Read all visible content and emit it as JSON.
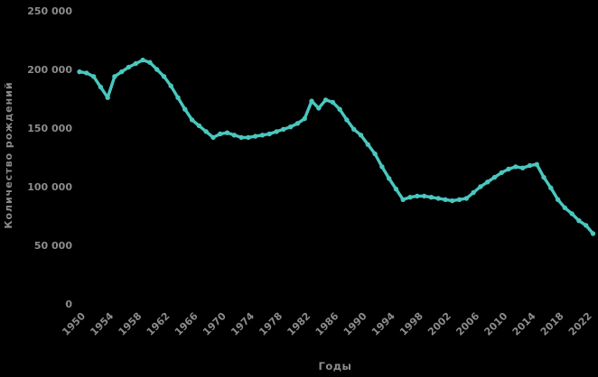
{
  "colors": {
    "background": "#000000",
    "text": "#8c8c8c",
    "accent": "#4ac7be"
  },
  "chart_data": {
    "type": "line",
    "title": "",
    "xlabel": "Годы",
    "ylabel": "Количество рождений",
    "grid": false,
    "legend": "none",
    "xlim": [
      1950,
      2023
    ],
    "ylim": [
      0,
      250000
    ],
    "x_tick_years": [
      1950,
      1954,
      1958,
      1962,
      1966,
      1970,
      1974,
      1978,
      1982,
      1986,
      1990,
      1994,
      1998,
      2002,
      2006,
      2010,
      2014,
      2018,
      2022
    ],
    "y_ticks": [
      {
        "value": 0,
        "label": "0"
      },
      {
        "value": 50000,
        "label": "50 000"
      },
      {
        "value": 100000,
        "label": "100 000"
      },
      {
        "value": 150000,
        "label": "150 000"
      },
      {
        "value": 200000,
        "label": "200 000"
      },
      {
        "value": 250000,
        "label": "250 000"
      }
    ],
    "series": [
      {
        "name": "Количество рождений",
        "color": "#4ac7be",
        "marker": "circle",
        "x": [
          1950,
          1951,
          1952,
          1953,
          1954,
          1955,
          1956,
          1957,
          1958,
          1959,
          1960,
          1961,
          1962,
          1963,
          1964,
          1965,
          1966,
          1967,
          1968,
          1969,
          1970,
          1971,
          1972,
          1973,
          1974,
          1975,
          1976,
          1977,
          1978,
          1979,
          1980,
          1981,
          1982,
          1983,
          1984,
          1985,
          1986,
          1987,
          1988,
          1989,
          1990,
          1991,
          1992,
          1993,
          1994,
          1995,
          1996,
          1997,
          1998,
          1999,
          2000,
          2001,
          2002,
          2003,
          2004,
          2005,
          2006,
          2007,
          2008,
          2009,
          2010,
          2011,
          2012,
          2013,
          2014,
          2015,
          2016,
          2017,
          2018,
          2019,
          2020,
          2021,
          2022,
          2023
        ],
        "y": [
          198000,
          197000,
          194000,
          185000,
          176000,
          194000,
          198000,
          202000,
          205000,
          208000,
          206000,
          200000,
          194000,
          186000,
          176000,
          166000,
          157000,
          152000,
          147000,
          142000,
          145000,
          146000,
          144000,
          142000,
          142000,
          143000,
          144000,
          145000,
          147000,
          149000,
          151000,
          154000,
          158000,
          173000,
          167000,
          174000,
          172000,
          166000,
          157000,
          149000,
          144000,
          136000,
          128000,
          117000,
          107000,
          98000,
          89000,
          91000,
          92000,
          92000,
          91000,
          90000,
          89000,
          88000,
          89000,
          90000,
          95000,
          100000,
          104000,
          108000,
          112000,
          115000,
          117000,
          116000,
          118000,
          119000,
          108000,
          99000,
          89000,
          82000,
          77000,
          71000,
          67000,
          60000
        ]
      }
    ]
  }
}
